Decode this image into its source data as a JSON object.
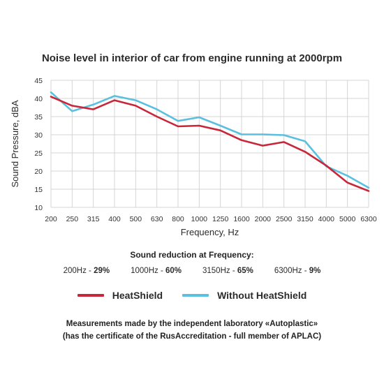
{
  "chart_data": {
    "type": "line",
    "title": "Noise level in interior of car from engine running at 2000rpm",
    "xlabel": "Frequency, Hz",
    "ylabel": "Sound Pressure, dBA",
    "categories": [
      "200",
      "250",
      "315",
      "400",
      "500",
      "630",
      "800",
      "1000",
      "1250",
      "1600",
      "2000",
      "2500",
      "3150",
      "4000",
      "5000",
      "6300"
    ],
    "ylim": [
      10,
      45
    ],
    "yticks": [
      "10",
      "15",
      "20",
      "25",
      "30",
      "35",
      "40",
      "45"
    ],
    "grid": true,
    "legend_position": "bottom",
    "series": [
      {
        "name": "HeatShield",
        "color": "#c8273a",
        "values": [
          40.5,
          38,
          37,
          39.5,
          38,
          35,
          32.3,
          32.5,
          31.2,
          28.5,
          27,
          28,
          25.3,
          21.5,
          16.8,
          14.5
        ]
      },
      {
        "name": "Without HeatShield",
        "color": "#5bbfe0",
        "values": [
          41.7,
          36.5,
          38.3,
          40.7,
          39.5,
          37,
          33.8,
          34.8,
          32.5,
          30.1,
          30.1,
          29.9,
          28.2,
          21.3,
          18.7,
          15.4
        ]
      }
    ]
  },
  "reduction": {
    "heading": "Sound reduction at Frequency:",
    "items": [
      {
        "freq": "200Hz - ",
        "pct": "29%"
      },
      {
        "freq": "1000Hz - ",
        "pct": "60%"
      },
      {
        "freq": "3150Hz - ",
        "pct": "65%"
      },
      {
        "freq": "6300Hz - ",
        "pct": "9%"
      }
    ]
  },
  "footnote": {
    "line1": "Measurements made by the independent laboratory «Autoplastic»",
    "line2": "(has the certificate of the RusAccreditation - full member of APLAC)"
  }
}
